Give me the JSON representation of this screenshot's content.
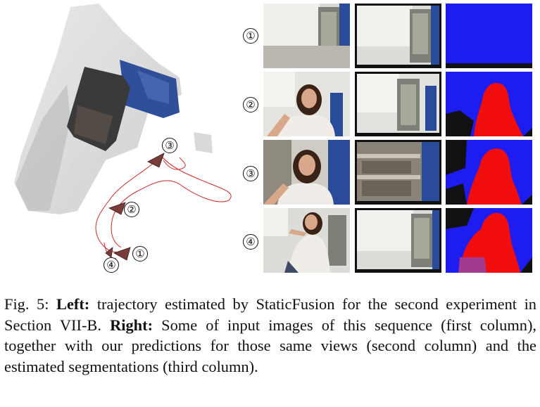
{
  "figure": {
    "rows": [
      {
        "label": "①"
      },
      {
        "label": "②"
      },
      {
        "label": "③"
      },
      {
        "label": "④"
      }
    ],
    "trajectory_markers": [
      "①",
      "②",
      "③",
      "④"
    ],
    "colors": {
      "trajectory": "#cc2a2a",
      "camera_marker": "#7a3b3b",
      "segmentation_static": "#1d1df2",
      "segmentation_dynamic": "#f20d0d",
      "segmentation_mixed": "#a23b8f",
      "wall_panel": "#2f4f9a"
    }
  },
  "caption": {
    "fig_label": "Fig. 5:",
    "left_label": "Left:",
    "left_text": " trajectory estimated by StaticFusion for the second experiment in Section VII-B. ",
    "right_label": "Right:",
    "right_text": " Some of input images of this sequence (first column), together with our predictions for those same views (second column) and the estimated segmentations (third column)."
  }
}
